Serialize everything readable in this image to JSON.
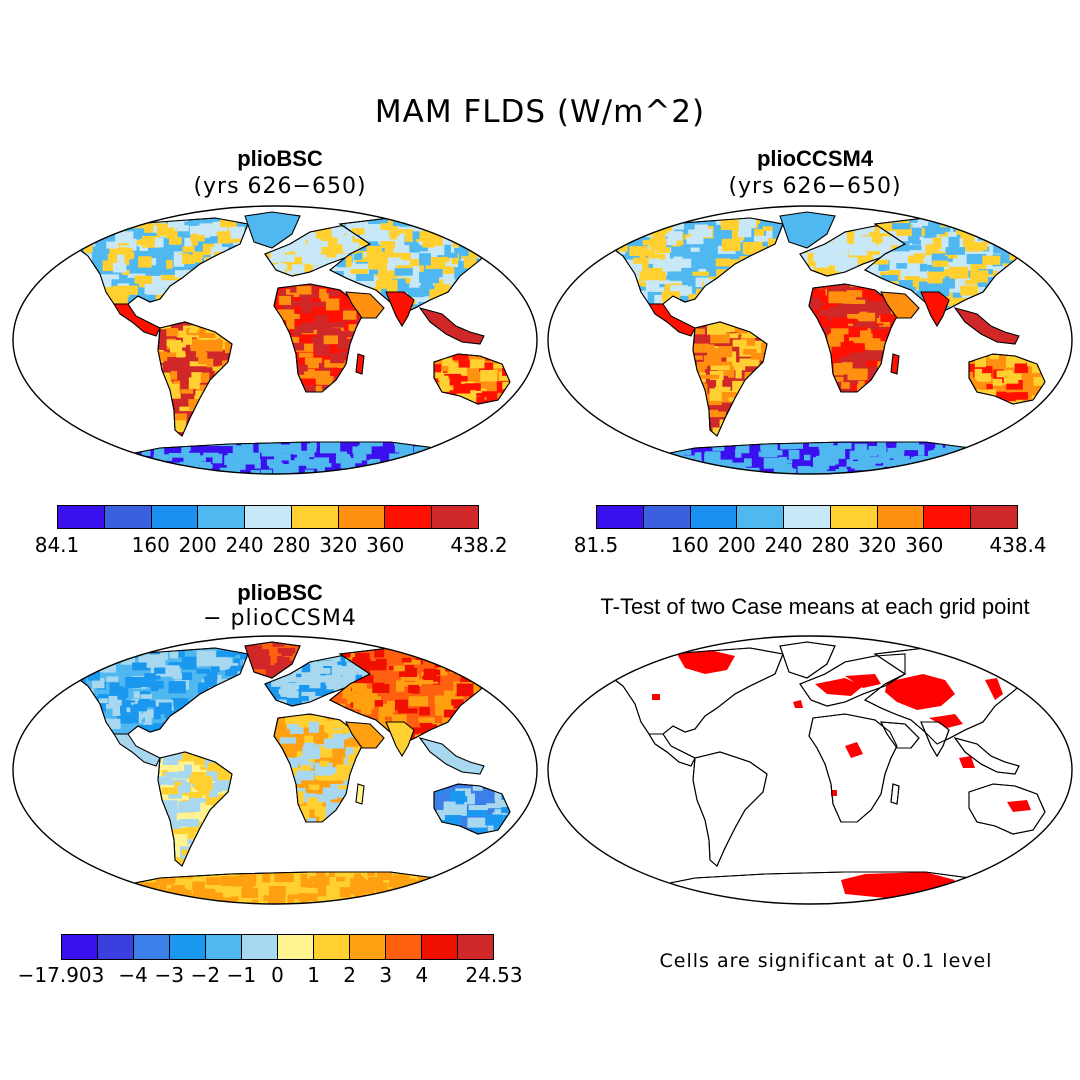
{
  "figure": {
    "title": "MAM FLDS (W/m^2)",
    "footnote": "Cells are significant at 0.1 level"
  },
  "panels": {
    "top_left": {
      "title": "plioBSC",
      "subtitle": "(yrs 626−650)"
    },
    "top_right": {
      "title": "plioCCSM4",
      "subtitle": "(yrs 626−650)"
    },
    "bottom_left": {
      "title": "plioBSC",
      "subtitle": "− plioCCSM4"
    },
    "bottom_right": {
      "title": "T-Test of two Case means at each grid point"
    }
  },
  "colorbars": {
    "cb1": {
      "colors": [
        "#3a10ee",
        "#3a60e0",
        "#1a90f0",
        "#50b8f0",
        "#c8e8f8",
        "#ffd030",
        "#ff9010",
        "#ff1000",
        "#d02828"
      ],
      "labels": [
        "84.1",
        "160",
        "200",
        "240",
        "280",
        "320",
        "360",
        "438.2"
      ]
    },
    "cb2": {
      "colors": [
        "#3a10ee",
        "#3a60e0",
        "#1a90f0",
        "#50b8f0",
        "#c8e8f8",
        "#ffd030",
        "#ff9010",
        "#ff1000",
        "#d02828"
      ],
      "labels": [
        "81.5",
        "160",
        "200",
        "240",
        "280",
        "320",
        "360",
        "438.4"
      ]
    },
    "cb3": {
      "colors": [
        "#3a10ee",
        "#3a40e0",
        "#3a80e8",
        "#1a98f0",
        "#50b8f0",
        "#a8d8f0",
        "#fff490",
        "#ffd030",
        "#ffa010",
        "#ff6010",
        "#f01000",
        "#d02828"
      ],
      "labels": [
        "−17.903",
        "−4",
        "−3",
        "−2",
        "−1",
        "0",
        "1",
        "2",
        "3",
        "4",
        "24.53"
      ]
    }
  },
  "map_colors": {
    "cold": "#3a10ee",
    "cool": "#50b8f0",
    "mild": "#c8e8f8",
    "warm": "#ffd030",
    "hot": "#ff9010",
    "hotter": "#ff1000",
    "hottest": "#d02828",
    "significant": "#ff0000"
  }
}
